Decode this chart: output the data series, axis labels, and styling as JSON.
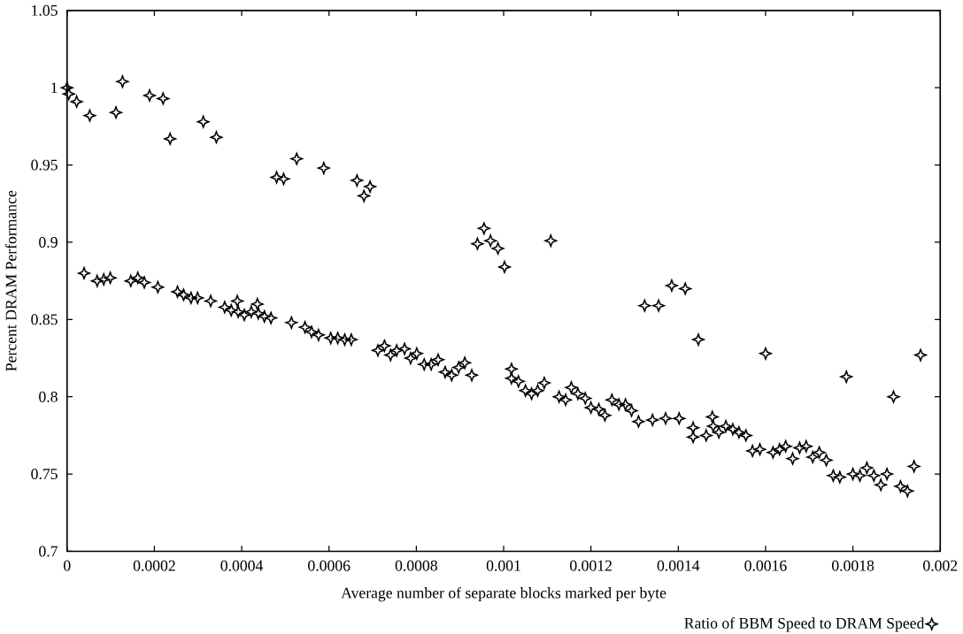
{
  "chart_data": {
    "type": "scatter",
    "xlabel": "Average number of separate blocks marked per byte",
    "ylabel": "Percent DRAM Performance",
    "xlim": [
      0,
      0.002
    ],
    "ylim": [
      0.7,
      1.05
    ],
    "xticks": [
      0,
      0.0002,
      0.0004,
      0.0006,
      0.0008,
      0.001,
      0.0012,
      0.0014,
      0.0016,
      0.0018,
      0.002
    ],
    "yticks": [
      0.7,
      0.75,
      0.8,
      0.85,
      0.9,
      0.95,
      1,
      1.05
    ],
    "grid": false,
    "legend": "bottom right",
    "marker": "star",
    "series": [
      {
        "name": "Ratio of BBM Speed to DRAM Speed",
        "color": "#000000",
        "x": [
          0,
          4e-06,
          2.2e-05,
          3.9e-05,
          5.2e-05,
          6.9e-05,
          8.4e-05,
          9.9e-05,
          0.000112,
          0.000127,
          0.000146,
          0.000162,
          0.000177,
          0.000189,
          0.000208,
          0.00022,
          0.000236,
          0.000253,
          0.000267,
          0.000284,
          0.000299,
          0.000312,
          0.000329,
          0.000342,
          0.000361,
          0.000376,
          0.00039,
          0.000392,
          0.000406,
          0.000422,
          0.000436,
          0.000438,
          0.000452,
          0.000467,
          0.00048,
          0.000496,
          0.000514,
          0.000526,
          0.000545,
          0.00056,
          0.000576,
          0.000588,
          0.000604,
          0.00062,
          0.000636,
          0.000651,
          0.000664,
          0.00068,
          0.000694,
          0.000712,
          0.000727,
          0.000741,
          0.000755,
          0.000773,
          0.000787,
          0.000801,
          0.000818,
          0.000834,
          0.00085,
          0.000866,
          0.000881,
          0.000897,
          0.000911,
          0.000927,
          0.00094,
          0.000955,
          0.00097,
          0.000987,
          0.001002,
          0.001018,
          0.001018,
          0.001034,
          0.00105,
          0.001064,
          0.001078,
          0.001093,
          0.001108,
          0.001127,
          0.001142,
          0.001155,
          0.00117,
          0.001187,
          0.0012,
          0.001218,
          0.001232,
          0.001248,
          0.001264,
          0.001279,
          0.001293,
          0.001309,
          0.001323,
          0.001341,
          0.001355,
          0.001371,
          0.001385,
          0.001402,
          0.001416,
          0.001434,
          0.001434,
          0.001446,
          0.001464,
          0.001478,
          0.00148,
          0.001493,
          0.001509,
          0.001525,
          0.001539,
          0.001555,
          0.00157,
          0.001587,
          0.0016,
          0.001617,
          0.001632,
          0.001646,
          0.001662,
          0.001678,
          0.001693,
          0.001708,
          0.001723,
          0.001739,
          0.001755,
          0.00177,
          0.001785,
          0.0018,
          0.001816,
          0.001832,
          0.001848,
          0.001864,
          0.001878,
          0.001893,
          0.001909,
          0.001925,
          0.00194,
          0.001955
        ],
        "values": [
          1.0,
          0.996,
          0.991,
          0.88,
          0.982,
          0.875,
          0.876,
          0.877,
          0.984,
          1.004,
          0.875,
          0.877,
          0.874,
          0.995,
          0.871,
          0.993,
          0.967,
          0.868,
          0.866,
          0.864,
          0.864,
          0.978,
          0.862,
          0.968,
          0.858,
          0.856,
          0.862,
          0.855,
          0.853,
          0.855,
          0.86,
          0.854,
          0.852,
          0.851,
          0.942,
          0.941,
          0.848,
          0.954,
          0.845,
          0.842,
          0.84,
          0.948,
          0.838,
          0.838,
          0.837,
          0.837,
          0.94,
          0.93,
          0.936,
          0.83,
          0.833,
          0.827,
          0.83,
          0.831,
          0.825,
          0.828,
          0.821,
          0.821,
          0.824,
          0.816,
          0.814,
          0.819,
          0.822,
          0.814,
          0.899,
          0.909,
          0.901,
          0.896,
          0.884,
          0.818,
          0.812,
          0.81,
          0.804,
          0.802,
          0.804,
          0.809,
          0.901,
          0.8,
          0.798,
          0.806,
          0.802,
          0.799,
          0.793,
          0.792,
          0.788,
          0.798,
          0.795,
          0.795,
          0.791,
          0.784,
          0.859,
          0.785,
          0.859,
          0.786,
          0.872,
          0.786,
          0.87,
          0.78,
          0.774,
          0.837,
          0.775,
          0.787,
          0.781,
          0.777,
          0.781,
          0.779,
          0.777,
          0.775,
          0.765,
          0.766,
          0.828,
          0.764,
          0.766,
          0.768,
          0.76,
          0.767,
          0.768,
          0.761,
          0.764,
          0.759,
          0.749,
          0.748,
          0.813,
          0.75,
          0.749,
          0.754,
          0.749,
          0.743,
          0.75,
          0.8,
          0.742,
          0.739,
          0.755,
          0.827
        ]
      }
    ]
  }
}
